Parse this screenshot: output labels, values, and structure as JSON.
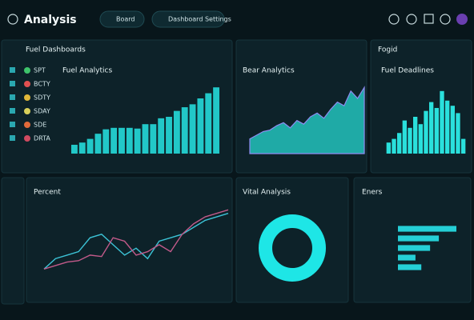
{
  "header": {
    "title": "Analysis",
    "tabs": [
      "Board",
      "Dashboard Settings"
    ]
  },
  "panels": {
    "left_title": "Fuel Dashboards",
    "right_title": "Fogid"
  },
  "sidebar": {
    "items": [
      "SPT",
      "BCTY",
      "SDTY",
      "SDAY",
      "SDE",
      "DRTA"
    ]
  },
  "chart_data": [
    {
      "type": "bar",
      "title": "Fuel Analytics",
      "color": "#22c8c8",
      "ylim": [
        0,
        100
      ],
      "values": [
        12,
        15,
        20,
        27,
        33,
        35,
        35,
        35,
        34,
        40,
        40,
        48,
        50,
        58,
        63,
        67,
        75,
        82,
        90
      ]
    },
    {
      "type": "area",
      "title": "Bear Analytics",
      "color": "#1faaa6",
      "ylim": [
        0,
        100
      ],
      "values": [
        20,
        25,
        30,
        32,
        38,
        42,
        35,
        45,
        40,
        50,
        55,
        48,
        60,
        70,
        65,
        85,
        75,
        90
      ]
    },
    {
      "type": "bar",
      "title": "Fuel Deadlines",
      "color": "#2ae0dc",
      "ylim": [
        0,
        100
      ],
      "values": [
        15,
        20,
        28,
        45,
        35,
        50,
        40,
        58,
        70,
        62,
        85,
        72,
        65,
        55,
        20
      ]
    },
    {
      "type": "line",
      "title": "Percent",
      "ylim": [
        0,
        100
      ],
      "series": [
        {
          "name": "Cyan",
          "color": "#3cc3d6",
          "values": [
            10,
            25,
            30,
            35,
            55,
            60,
            45,
            30,
            40,
            25,
            50,
            55,
            60,
            70,
            80,
            85,
            90
          ]
        },
        {
          "name": "Pink",
          "color": "#c25a8a",
          "values": [
            10,
            15,
            20,
            22,
            30,
            28,
            55,
            50,
            30,
            35,
            45,
            35,
            60,
            75,
            85,
            90,
            95
          ]
        }
      ]
    },
    {
      "type": "pie",
      "title": "Vital Analysis",
      "color": "#1ee6e6",
      "values": [
        100
      ]
    },
    {
      "type": "hbar",
      "title": "Eners",
      "color": "#25cfd6",
      "xlim": [
        0,
        100
      ],
      "values": [
        100,
        70,
        55,
        30,
        40
      ]
    }
  ]
}
